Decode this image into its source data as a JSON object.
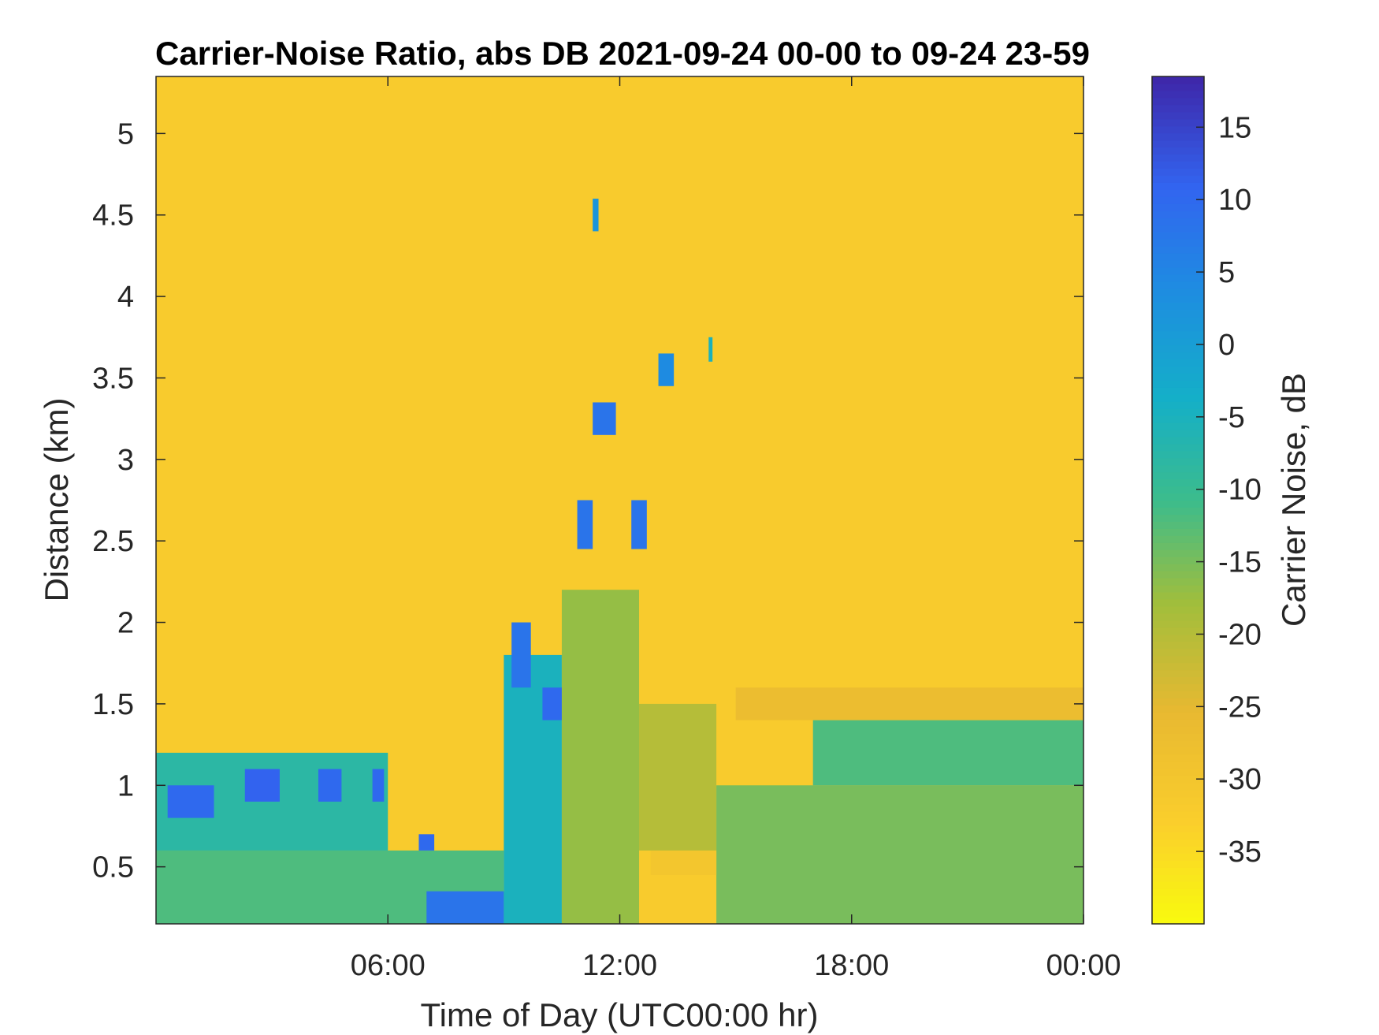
{
  "chart_data": {
    "type": "heatmap",
    "title": "Carrier-Noise Ratio, abs DB 2021-09-24 00-00 to 09-24 23-59",
    "xlabel": "Time of Day (UTC00:00 hr)",
    "ylabel": "Distance (km)",
    "colorbar_label": "Carrier Noise, dB",
    "x_range_hours": [
      0,
      24
    ],
    "x_ticks": [
      {
        "value": 6,
        "label": "06:00"
      },
      {
        "value": 12,
        "label": "12:00"
      },
      {
        "value": 18,
        "label": "18:00"
      },
      {
        "value": 24,
        "label": "00:00"
      }
    ],
    "ylim": [
      0.15,
      5.35
    ],
    "y_ticks": [
      {
        "value": 0.5,
        "label": "0.5"
      },
      {
        "value": 1,
        "label": "1"
      },
      {
        "value": 1.5,
        "label": "1.5"
      },
      {
        "value": 2,
        "label": "2"
      },
      {
        "value": 2.5,
        "label": "2.5"
      },
      {
        "value": 3,
        "label": "3"
      },
      {
        "value": 3.5,
        "label": "3.5"
      },
      {
        "value": 4,
        "label": "4"
      },
      {
        "value": 4.5,
        "label": "4.5"
      },
      {
        "value": 5,
        "label": "5"
      }
    ],
    "clim": [
      -40,
      18.5
    ],
    "colorbar_ticks": [
      {
        "value": 15,
        "label": "15"
      },
      {
        "value": 10,
        "label": "10"
      },
      {
        "value": 5,
        "label": "5"
      },
      {
        "value": 0,
        "label": "0"
      },
      {
        "value": -5,
        "label": "-5"
      },
      {
        "value": -10,
        "label": "-10"
      },
      {
        "value": -15,
        "label": "-15"
      },
      {
        "value": -20,
        "label": "-20"
      },
      {
        "value": -25,
        "label": "-25"
      },
      {
        "value": -30,
        "label": "-30"
      },
      {
        "value": -35,
        "label": "-35"
      }
    ],
    "colormap": "parula",
    "background_value_db": -32,
    "regions": [
      {
        "t0": 0.0,
        "t1": 9.0,
        "d0": 0.15,
        "d1": 0.6,
        "v": -12
      },
      {
        "t0": 0.0,
        "t1": 6.0,
        "d0": 0.6,
        "d1": 1.2,
        "v": -8
      },
      {
        "t0": 0.3,
        "t1": 1.5,
        "d0": 0.8,
        "d1": 1.0,
        "v": 10
      },
      {
        "t0": 2.3,
        "t1": 3.2,
        "d0": 0.9,
        "d1": 1.1,
        "v": 11
      },
      {
        "t0": 4.2,
        "t1": 4.8,
        "d0": 0.9,
        "d1": 1.1,
        "v": 10
      },
      {
        "t0": 5.6,
        "t1": 5.9,
        "d0": 0.9,
        "d1": 1.1,
        "v": 10
      },
      {
        "t0": 6.8,
        "t1": 7.2,
        "d0": 0.6,
        "d1": 0.7,
        "v": 10
      },
      {
        "t0": 7.0,
        "t1": 9.0,
        "d0": 0.15,
        "d1": 0.35,
        "v": 8
      },
      {
        "t0": 9.0,
        "t1": 10.5,
        "d0": 0.15,
        "d1": 1.8,
        "v": -5
      },
      {
        "t0": 10.0,
        "t1": 10.5,
        "d0": 1.4,
        "d1": 1.6,
        "v": 10
      },
      {
        "t0": 9.2,
        "t1": 9.7,
        "d0": 1.6,
        "d1": 2.0,
        "v": 8
      },
      {
        "t0": 10.5,
        "t1": 12.5,
        "d0": 0.15,
        "d1": 2.2,
        "v": -17
      },
      {
        "t0": 12.5,
        "t1": 14.5,
        "d0": 0.6,
        "d1": 1.5,
        "v": -20
      },
      {
        "t0": 14.5,
        "t1": 24.0,
        "d0": 0.15,
        "d1": 1.0,
        "v": -15
      },
      {
        "t0": 17.0,
        "t1": 24.0,
        "d0": 1.0,
        "d1": 1.4,
        "v": -12
      },
      {
        "t0": 15.0,
        "t1": 24.0,
        "d0": 1.4,
        "d1": 1.6,
        "v": -27
      },
      {
        "t0": 12.8,
        "t1": 14.5,
        "d0": 0.45,
        "d1": 0.6,
        "v": -30
      },
      {
        "t0": 10.9,
        "t1": 11.3,
        "d0": 2.45,
        "d1": 2.75,
        "v": 8
      },
      {
        "t0": 12.3,
        "t1": 12.7,
        "d0": 2.45,
        "d1": 2.75,
        "v": 8
      },
      {
        "t0": 11.3,
        "t1": 11.9,
        "d0": 3.15,
        "d1": 3.35,
        "v": 8
      },
      {
        "t0": 13.0,
        "t1": 13.4,
        "d0": 3.45,
        "d1": 3.65,
        "v": 4
      },
      {
        "t0": 11.3,
        "t1": 11.45,
        "d0": 4.4,
        "d1": 4.6,
        "v": 2
      },
      {
        "t0": 14.3,
        "t1": 14.4,
        "d0": 3.6,
        "d1": 3.75,
        "v": -5
      }
    ]
  }
}
